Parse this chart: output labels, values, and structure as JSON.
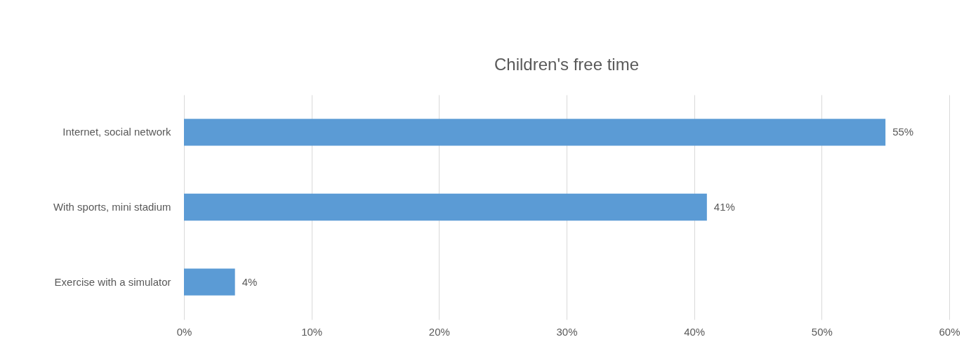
{
  "chart_data": {
    "type": "bar",
    "orientation": "horizontal",
    "title": "Children's free time",
    "categories": [
      "Internet, social network",
      "With sports, mini stadium",
      "Exercise with a simulator"
    ],
    "values": [
      55,
      41,
      4
    ],
    "value_labels": [
      "55%",
      "41%",
      "4%"
    ],
    "color": "#5b9bd5",
    "xlim": [
      0,
      60
    ],
    "xticks": [
      {
        "value": 0,
        "label": "0%"
      },
      {
        "value": 10,
        "label": "10%"
      },
      {
        "value": 20,
        "label": "20%"
      },
      {
        "value": 30,
        "label": "30%"
      },
      {
        "value": 40,
        "label": "40%"
      },
      {
        "value": 50,
        "label": "50%"
      },
      {
        "value": 60,
        "label": "60%"
      }
    ],
    "grid": "x"
  }
}
